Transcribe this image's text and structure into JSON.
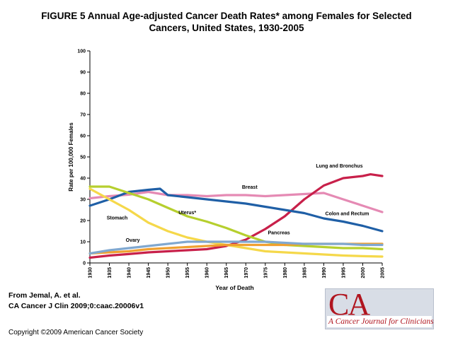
{
  "title_lines": [
    "FIGURE 5 Annual Age-adjusted Cancer Death Rates* among Females for Selected",
    "Cancers, United States, 1930-2005"
  ],
  "caption_lines": [
    "From Jemal, A. et al.",
    "CA Cancer J Clin 2009;0:caac.20006v1"
  ],
  "copyright": "Copyright ©2009 American Cancer Society",
  "logo": {
    "big": "CA",
    "small": "A Cancer Journal for Clinicians",
    "accent": "#b0151f"
  },
  "chart_data": {
    "type": "line",
    "title": "",
    "xlabel": "Year of Death",
    "ylabel": "Rate per 100,000 Females",
    "xlim": [
      1930,
      2005
    ],
    "ylim": [
      0,
      100
    ],
    "yticks": [
      0,
      10,
      20,
      30,
      40,
      50,
      60,
      70,
      80,
      90,
      100
    ],
    "xticks": [
      1930,
      1935,
      1940,
      1945,
      1950,
      1955,
      1960,
      1965,
      1970,
      1975,
      1980,
      1985,
      1990,
      1995,
      2000,
      2005
    ],
    "grid": false,
    "series": [
      {
        "name": "Breast",
        "color": "#e58ab4",
        "x": [
          1930,
          1935,
          1940,
          1945,
          1950,
          1955,
          1960,
          1965,
          1970,
          1975,
          1980,
          1985,
          1990,
          1995,
          2000,
          2005
        ],
        "y": [
          30.5,
          31.5,
          32.2,
          33.5,
          32,
          32,
          31.5,
          32,
          32,
          31.5,
          32,
          32.5,
          33,
          30,
          27,
          24
        ]
      },
      {
        "name": "Lung and Bronchus",
        "color": "#c8204a",
        "x": [
          1930,
          1935,
          1940,
          1945,
          1950,
          1955,
          1960,
          1965,
          1970,
          1975,
          1980,
          1985,
          1990,
          1995,
          2000,
          2002,
          2005
        ],
        "y": [
          2.5,
          3.5,
          4.2,
          5,
          5.5,
          6,
          6.5,
          8,
          11,
          16,
          22,
          30,
          36.5,
          40,
          41,
          41.8,
          41
        ]
      },
      {
        "name": "Colon and Rectum",
        "color": "#1f5fa6",
        "x": [
          1930,
          1935,
          1940,
          1945,
          1948,
          1950,
          1955,
          1960,
          1965,
          1970,
          1975,
          1980,
          1985,
          1990,
          1995,
          2000,
          2005
        ],
        "y": [
          27,
          30,
          33.5,
          34.5,
          35,
          32,
          31,
          30,
          29,
          28,
          26.5,
          25,
          23.5,
          21,
          19.5,
          17.5,
          15
        ]
      },
      {
        "name": "Uterus*",
        "color": "#b6cf2e",
        "x": [
          1930,
          1935,
          1940,
          1945,
          1950,
          1955,
          1960,
          1965,
          1970,
          1975,
          1980,
          1985,
          1990,
          1995,
          2000,
          2005
        ],
        "y": [
          36,
          36,
          33,
          30,
          26,
          22,
          19.5,
          16.5,
          13,
          10,
          8.5,
          8,
          7.5,
          7,
          7,
          6.5
        ]
      },
      {
        "name": "Stomach",
        "color": "#f5d84a",
        "x": [
          1930,
          1935,
          1940,
          1945,
          1950,
          1955,
          1960,
          1965,
          1970,
          1975,
          1980,
          1985,
          1990,
          1995,
          2000,
          2005
        ],
        "y": [
          35,
          30,
          25,
          19,
          15,
          12,
          10,
          8.5,
          7,
          5.5,
          5,
          4.5,
          4,
          3.5,
          3.2,
          3
        ]
      },
      {
        "name": "Pancreas",
        "color": "#f0a030",
        "x": [
          1930,
          1935,
          1940,
          1945,
          1950,
          1955,
          1960,
          1965,
          1970,
          1975,
          1980,
          1985,
          1990,
          1995,
          2000,
          2005
        ],
        "y": [
          4.5,
          5,
          5.5,
          6.5,
          7,
          7.5,
          8,
          8.5,
          8.5,
          8.5,
          8.5,
          9,
          9,
          9,
          9,
          9
        ]
      },
      {
        "name": "Ovary",
        "color": "#80a8d0",
        "x": [
          1930,
          1935,
          1940,
          1945,
          1950,
          1955,
          1960,
          1965,
          1970,
          1975,
          1980,
          1985,
          1990,
          1995,
          2000,
          2005
        ],
        "y": [
          4.5,
          6,
          7,
          8,
          9,
          10,
          10,
          10,
          10,
          10,
          9.5,
          9,
          9,
          9,
          8.5,
          8.5
        ]
      }
    ],
    "annotations": [
      {
        "text": "Breast",
        "x": 1971,
        "y": 35
      },
      {
        "text": "Lung and Bronchus",
        "x": 1994,
        "y": 45
      },
      {
        "text": "Colon and Rectum",
        "x": 1996,
        "y": 22.5
      },
      {
        "text": "Uterus*",
        "x": 1955,
        "y": 23
      },
      {
        "text": "Stomach",
        "x": 1937,
        "y": 20.5
      },
      {
        "text": "Pancreas",
        "x": 1978.5,
        "y": 13.5
      },
      {
        "text": "Ovary",
        "x": 1941,
        "y": 10
      }
    ]
  }
}
